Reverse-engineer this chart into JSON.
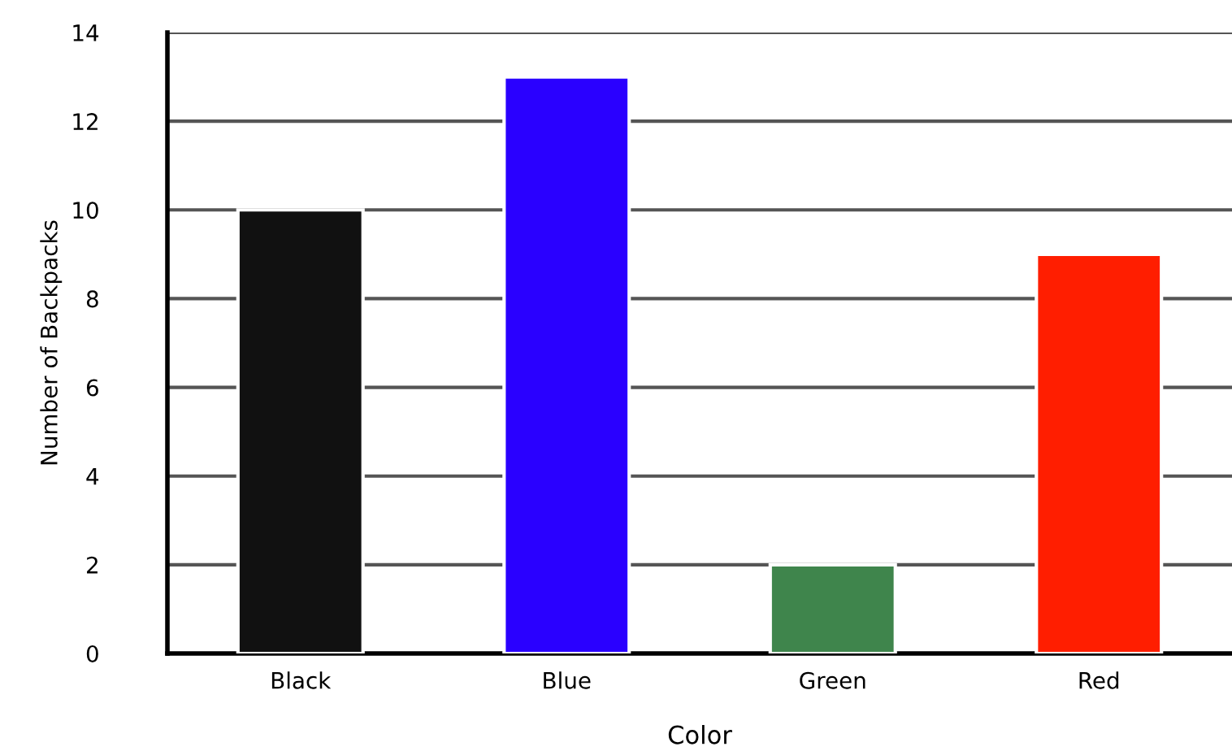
{
  "chart_data": {
    "type": "bar",
    "xlabel": "Color",
    "ylabel": "Number of Backpacks",
    "categories": [
      "Black",
      "Blue",
      "Green",
      "Red"
    ],
    "values": [
      10,
      13,
      2,
      9
    ],
    "colors": [
      "#111111",
      "#2a00ff",
      "#3f854c",
      "#ff1e00"
    ],
    "ylim": [
      0,
      14
    ],
    "yticks": [
      0,
      2,
      4,
      6,
      8,
      10,
      12,
      14
    ],
    "grid": "y"
  }
}
